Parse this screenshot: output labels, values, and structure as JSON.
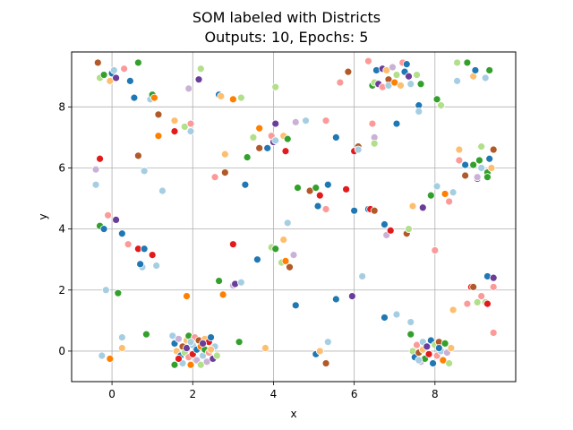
{
  "chart_data": {
    "type": "scatter",
    "title": "SOM labeled with Districts",
    "subtitle": "Outputs: 10, Epochs: 5",
    "xlabel": "x",
    "ylabel": "y",
    "xlim": [
      -1.0,
      10.0
    ],
    "ylim": [
      -1.0,
      9.8
    ],
    "xticks": [
      0,
      2,
      4,
      6,
      8
    ],
    "yticks": [
      0,
      2,
      4,
      6,
      8
    ],
    "grid": true,
    "palette": [
      "#a6cee3",
      "#1f78b4",
      "#b2df8a",
      "#33a02c",
      "#fb9a99",
      "#e31a1c",
      "#fdbf6f",
      "#ff7f00",
      "#cab2d6",
      "#6a3d9a",
      "#b15928"
    ],
    "points": [
      {
        "x": -0.35,
        "y": 9.45,
        "c": 10
      },
      {
        "x": -0.3,
        "y": 8.95,
        "c": 2
      },
      {
        "x": -0.2,
        "y": 9.05,
        "c": 3
      },
      {
        "x": -0.05,
        "y": 8.85,
        "c": 6
      },
      {
        "x": 0.0,
        "y": 9.1,
        "c": 1
      },
      {
        "x": 0.05,
        "y": 9.2,
        "c": 0
      },
      {
        "x": 0.1,
        "y": 8.95,
        "c": 9
      },
      {
        "x": 0.3,
        "y": 9.25,
        "c": 4
      },
      {
        "x": 0.45,
        "y": 8.85,
        "c": 1
      },
      {
        "x": 0.65,
        "y": 9.45,
        "c": 3
      },
      {
        "x": 0.55,
        "y": 8.3,
        "c": 1
      },
      {
        "x": 0.95,
        "y": 8.25,
        "c": 0
      },
      {
        "x": 1.0,
        "y": 8.4,
        "c": 3
      },
      {
        "x": 1.05,
        "y": 8.3,
        "c": 7
      },
      {
        "x": -0.3,
        "y": 6.3,
        "c": 5
      },
      {
        "x": -0.4,
        "y": 5.95,
        "c": 8
      },
      {
        "x": -0.4,
        "y": 5.45,
        "c": 0
      },
      {
        "x": 0.65,
        "y": 6.4,
        "c": 10
      },
      {
        "x": 0.8,
        "y": 5.9,
        "c": 0
      },
      {
        "x": 1.15,
        "y": 7.75,
        "c": 10
      },
      {
        "x": 1.15,
        "y": 7.05,
        "c": 7
      },
      {
        "x": 1.25,
        "y": 5.25,
        "c": 0
      },
      {
        "x": 1.55,
        "y": 7.55,
        "c": 6
      },
      {
        "x": 1.55,
        "y": 7.2,
        "c": 5
      },
      {
        "x": 1.8,
        "y": 7.35,
        "c": 2
      },
      {
        "x": 1.9,
        "y": 8.6,
        "c": 8
      },
      {
        "x": 1.95,
        "y": 7.45,
        "c": 4
      },
      {
        "x": 1.95,
        "y": 7.2,
        "c": 0
      },
      {
        "x": 2.15,
        "y": 8.9,
        "c": 9
      },
      {
        "x": 2.2,
        "y": 9.25,
        "c": 2
      },
      {
        "x": 2.65,
        "y": 8.4,
        "c": 1
      },
      {
        "x": 2.7,
        "y": 8.35,
        "c": 6
      },
      {
        "x": 3.0,
        "y": 8.25,
        "c": 7
      },
      {
        "x": 3.2,
        "y": 8.3,
        "c": 2
      },
      {
        "x": 2.55,
        "y": 5.7,
        "c": 4
      },
      {
        "x": 2.8,
        "y": 5.85,
        "c": 10
      },
      {
        "x": 2.8,
        "y": 6.45,
        "c": 6
      },
      {
        "x": 3.3,
        "y": 5.45,
        "c": 1
      },
      {
        "x": 3.35,
        "y": 6.35,
        "c": 3
      },
      {
        "x": 3.5,
        "y": 7.0,
        "c": 2
      },
      {
        "x": 3.65,
        "y": 6.65,
        "c": 10
      },
      {
        "x": 3.65,
        "y": 7.3,
        "c": 7
      },
      {
        "x": 3.85,
        "y": 6.65,
        "c": 1
      },
      {
        "x": 3.95,
        "y": 7.05,
        "c": 4
      },
      {
        "x": 4.0,
        "y": 6.85,
        "c": 9
      },
      {
        "x": 4.05,
        "y": 7.45,
        "c": 9
      },
      {
        "x": 4.05,
        "y": 6.9,
        "c": 0
      },
      {
        "x": 4.05,
        "y": 8.65,
        "c": 2
      },
      {
        "x": 4.25,
        "y": 7.05,
        "c": 6
      },
      {
        "x": 4.3,
        "y": 6.55,
        "c": 5
      },
      {
        "x": 4.35,
        "y": 6.95,
        "c": 3
      },
      {
        "x": 4.55,
        "y": 7.5,
        "c": 8
      },
      {
        "x": 4.8,
        "y": 7.55,
        "c": 0
      },
      {
        "x": 5.3,
        "y": 7.55,
        "c": 4
      },
      {
        "x": 5.55,
        "y": 7.0,
        "c": 1
      },
      {
        "x": 5.65,
        "y": 8.8,
        "c": 4
      },
      {
        "x": 5.85,
        "y": 9.15,
        "c": 10
      },
      {
        "x": 4.6,
        "y": 5.35,
        "c": 3
      },
      {
        "x": 4.9,
        "y": 5.25,
        "c": 10
      },
      {
        "x": 5.05,
        "y": 5.35,
        "c": 3
      },
      {
        "x": 5.15,
        "y": 5.1,
        "c": 5
      },
      {
        "x": 5.35,
        "y": 5.45,
        "c": 1
      },
      {
        "x": 5.1,
        "y": 4.75,
        "c": 1
      },
      {
        "x": 5.3,
        "y": 4.65,
        "c": 4
      },
      {
        "x": 5.8,
        "y": 5.3,
        "c": 5
      },
      {
        "x": 6.0,
        "y": 4.6,
        "c": 1
      },
      {
        "x": 6.0,
        "y": 6.55,
        "c": 5
      },
      {
        "x": 6.1,
        "y": 6.7,
        "c": 10
      },
      {
        "x": 6.1,
        "y": 6.6,
        "c": 0
      },
      {
        "x": 6.35,
        "y": 4.65,
        "c": 1
      },
      {
        "x": 6.4,
        "y": 4.65,
        "c": 5
      },
      {
        "x": 6.45,
        "y": 7.45,
        "c": 4
      },
      {
        "x": 6.5,
        "y": 7.0,
        "c": 8
      },
      {
        "x": 6.5,
        "y": 6.8,
        "c": 2
      },
      {
        "x": 6.5,
        "y": 4.6,
        "c": 10
      },
      {
        "x": 6.75,
        "y": 4.15,
        "c": 1
      },
      {
        "x": 6.8,
        "y": 3.8,
        "c": 8
      },
      {
        "x": 6.9,
        "y": 3.95,
        "c": 5
      },
      {
        "x": 7.05,
        "y": 7.45,
        "c": 1
      },
      {
        "x": 6.35,
        "y": 9.5,
        "c": 4
      },
      {
        "x": 6.45,
        "y": 8.7,
        "c": 3
      },
      {
        "x": 6.5,
        "y": 8.8,
        "c": 2
      },
      {
        "x": 6.55,
        "y": 9.2,
        "c": 1
      },
      {
        "x": 6.6,
        "y": 8.75,
        "c": 9
      },
      {
        "x": 6.7,
        "y": 9.25,
        "c": 9
      },
      {
        "x": 6.7,
        "y": 8.65,
        "c": 4
      },
      {
        "x": 6.8,
        "y": 9.2,
        "c": 6
      },
      {
        "x": 6.85,
        "y": 8.9,
        "c": 10
      },
      {
        "x": 6.85,
        "y": 8.7,
        "c": 0
      },
      {
        "x": 6.95,
        "y": 9.3,
        "c": 8
      },
      {
        "x": 7.0,
        "y": 8.8,
        "c": 7
      },
      {
        "x": 7.05,
        "y": 9.05,
        "c": 2
      },
      {
        "x": 7.15,
        "y": 8.7,
        "c": 6
      },
      {
        "x": 7.2,
        "y": 9.45,
        "c": 4
      },
      {
        "x": 7.25,
        "y": 9.15,
        "c": 1
      },
      {
        "x": 7.3,
        "y": 9.4,
        "c": 1
      },
      {
        "x": 7.35,
        "y": 9.0,
        "c": 9
      },
      {
        "x": 7.4,
        "y": 8.75,
        "c": 0
      },
      {
        "x": 7.55,
        "y": 9.05,
        "c": 2
      },
      {
        "x": 7.65,
        "y": 8.75,
        "c": 3
      },
      {
        "x": 7.6,
        "y": 8.05,
        "c": 1
      },
      {
        "x": 7.6,
        "y": 7.85,
        "c": 0
      },
      {
        "x": 8.05,
        "y": 8.25,
        "c": 3
      },
      {
        "x": 8.15,
        "y": 8.05,
        "c": 2
      },
      {
        "x": 8.55,
        "y": 9.45,
        "c": 2
      },
      {
        "x": 8.55,
        "y": 8.85,
        "c": 0
      },
      {
        "x": 8.8,
        "y": 9.45,
        "c": 3
      },
      {
        "x": 8.95,
        "y": 9.0,
        "c": 6
      },
      {
        "x": 9.0,
        "y": 9.2,
        "c": 1
      },
      {
        "x": 9.25,
        "y": 8.95,
        "c": 0
      },
      {
        "x": 9.35,
        "y": 9.2,
        "c": 3
      },
      {
        "x": 7.3,
        "y": 3.85,
        "c": 10
      },
      {
        "x": 7.35,
        "y": 4.0,
        "c": 2
      },
      {
        "x": 7.45,
        "y": 4.75,
        "c": 6
      },
      {
        "x": 7.7,
        "y": 4.7,
        "c": 9
      },
      {
        "x": 7.9,
        "y": 5.1,
        "c": 3
      },
      {
        "x": 8.05,
        "y": 5.4,
        "c": 0
      },
      {
        "x": 8.0,
        "y": 3.3,
        "c": 4
      },
      {
        "x": 8.25,
        "y": 5.15,
        "c": 7
      },
      {
        "x": 8.35,
        "y": 4.9,
        "c": 4
      },
      {
        "x": 8.45,
        "y": 5.2,
        "c": 0
      },
      {
        "x": 8.6,
        "y": 6.6,
        "c": 6
      },
      {
        "x": 8.6,
        "y": 6.25,
        "c": 4
      },
      {
        "x": 8.75,
        "y": 6.1,
        "c": 1
      },
      {
        "x": 8.75,
        "y": 5.75,
        "c": 10
      },
      {
        "x": 8.95,
        "y": 6.1,
        "c": 3
      },
      {
        "x": 9.05,
        "y": 5.65,
        "c": 9
      },
      {
        "x": 9.05,
        "y": 5.7,
        "c": 8
      },
      {
        "x": 9.1,
        "y": 6.25,
        "c": 3
      },
      {
        "x": 9.15,
        "y": 6.0,
        "c": 0
      },
      {
        "x": 9.15,
        "y": 6.7,
        "c": 2
      },
      {
        "x": 9.3,
        "y": 5.85,
        "c": 3
      },
      {
        "x": 9.3,
        "y": 5.7,
        "c": 3
      },
      {
        "x": 9.35,
        "y": 6.3,
        "c": 1
      },
      {
        "x": 9.4,
        "y": 6.0,
        "c": 6
      },
      {
        "x": 9.45,
        "y": 6.6,
        "c": 10
      },
      {
        "x": -0.3,
        "y": 4.1,
        "c": 3
      },
      {
        "x": -0.2,
        "y": 4.0,
        "c": 1
      },
      {
        "x": -0.1,
        "y": 4.45,
        "c": 4
      },
      {
        "x": 0.1,
        "y": 4.3,
        "c": 9
      },
      {
        "x": 0.25,
        "y": 3.85,
        "c": 1
      },
      {
        "x": 0.4,
        "y": 3.5,
        "c": 4
      },
      {
        "x": 0.65,
        "y": 3.35,
        "c": 5
      },
      {
        "x": 0.75,
        "y": 2.75,
        "c": 0
      },
      {
        "x": 0.8,
        "y": 3.35,
        "c": 1
      },
      {
        "x": 0.7,
        "y": 2.85,
        "c": 1
      },
      {
        "x": 1.0,
        "y": 3.15,
        "c": 5
      },
      {
        "x": 1.1,
        "y": 2.8,
        "c": 0
      },
      {
        "x": -0.15,
        "y": 2.0,
        "c": 0
      },
      {
        "x": 0.15,
        "y": 1.9,
        "c": 3
      },
      {
        "x": 0.25,
        "y": 0.45,
        "c": 0
      },
      {
        "x": 0.25,
        "y": 0.1,
        "c": 6
      },
      {
        "x": -0.05,
        "y": -0.25,
        "c": 7
      },
      {
        "x": -0.25,
        "y": -0.15,
        "c": 0
      },
      {
        "x": 0.85,
        "y": 0.55,
        "c": 3
      },
      {
        "x": 2.65,
        "y": 2.3,
        "c": 3
      },
      {
        "x": 2.75,
        "y": 1.85,
        "c": 7
      },
      {
        "x": 3.0,
        "y": 3.5,
        "c": 5
      },
      {
        "x": 3.0,
        "y": 2.15,
        "c": 8
      },
      {
        "x": 3.05,
        "y": 2.2,
        "c": 9
      },
      {
        "x": 3.2,
        "y": 2.25,
        "c": 0
      },
      {
        "x": 3.6,
        "y": 3.0,
        "c": 1
      },
      {
        "x": 3.95,
        "y": 3.4,
        "c": 2
      },
      {
        "x": 4.05,
        "y": 3.35,
        "c": 3
      },
      {
        "x": 4.2,
        "y": 2.9,
        "c": 2
      },
      {
        "x": 4.25,
        "y": 3.65,
        "c": 6
      },
      {
        "x": 4.3,
        "y": 2.95,
        "c": 7
      },
      {
        "x": 4.4,
        "y": 2.75,
        "c": 10
      },
      {
        "x": 4.35,
        "y": 4.2,
        "c": 0
      },
      {
        "x": 4.5,
        "y": 3.15,
        "c": 8
      },
      {
        "x": 4.55,
        "y": 1.5,
        "c": 1
      },
      {
        "x": 1.85,
        "y": 1.8,
        "c": 7
      },
      {
        "x": 3.15,
        "y": 0.3,
        "c": 3
      },
      {
        "x": 3.8,
        "y": 0.1,
        "c": 6
      },
      {
        "x": 5.05,
        "y": -0.1,
        "c": 1
      },
      {
        "x": 5.15,
        "y": 0.0,
        "c": 6
      },
      {
        "x": 5.3,
        "y": -0.4,
        "c": 10
      },
      {
        "x": 5.35,
        "y": 0.3,
        "c": 0
      },
      {
        "x": 5.55,
        "y": 1.7,
        "c": 1
      },
      {
        "x": 5.95,
        "y": 1.8,
        "c": 9
      },
      {
        "x": 6.2,
        "y": 2.45,
        "c": 0
      },
      {
        "x": 6.75,
        "y": 1.1,
        "c": 1
      },
      {
        "x": 7.05,
        "y": 1.2,
        "c": 0
      },
      {
        "x": 7.4,
        "y": 0.95,
        "c": 0
      },
      {
        "x": 7.4,
        "y": 0.55,
        "c": 3
      },
      {
        "x": 8.45,
        "y": 1.35,
        "c": 6
      },
      {
        "x": 8.9,
        "y": 2.1,
        "c": 5
      },
      {
        "x": 8.95,
        "y": 2.1,
        "c": 10
      },
      {
        "x": 8.8,
        "y": 1.55,
        "c": 4
      },
      {
        "x": 9.05,
        "y": 1.6,
        "c": 2
      },
      {
        "x": 9.15,
        "y": 1.8,
        "c": 4
      },
      {
        "x": 9.25,
        "y": 1.6,
        "c": 2
      },
      {
        "x": 9.3,
        "y": 1.55,
        "c": 5
      },
      {
        "x": 9.3,
        "y": 2.45,
        "c": 1
      },
      {
        "x": 9.45,
        "y": 2.4,
        "c": 9
      },
      {
        "x": 9.45,
        "y": 2.1,
        "c": 4
      },
      {
        "x": 9.45,
        "y": 0.6,
        "c": 4
      },
      {
        "x": 1.5,
        "y": 0.5,
        "c": 0
      },
      {
        "x": 1.55,
        "y": -0.45,
        "c": 3
      },
      {
        "x": 1.55,
        "y": 0.25,
        "c": 1
      },
      {
        "x": 1.6,
        "y": 0.0,
        "c": 6
      },
      {
        "x": 1.65,
        "y": 0.4,
        "c": 8
      },
      {
        "x": 1.7,
        "y": -0.15,
        "c": 1
      },
      {
        "x": 1.75,
        "y": 0.15,
        "c": 10
      },
      {
        "x": 1.75,
        "y": -0.4,
        "c": 0
      },
      {
        "x": 1.8,
        "y": -0.05,
        "c": 2
      },
      {
        "x": 1.85,
        "y": 0.35,
        "c": 6
      },
      {
        "x": 1.85,
        "y": 0.1,
        "c": 9
      },
      {
        "x": 1.9,
        "y": -0.2,
        "c": 4
      },
      {
        "x": 1.9,
        "y": 0.5,
        "c": 3
      },
      {
        "x": 1.95,
        "y": -0.45,
        "c": 7
      },
      {
        "x": 2.0,
        "y": 0.2,
        "c": 0
      },
      {
        "x": 2.0,
        "y": -0.1,
        "c": 5
      },
      {
        "x": 2.05,
        "y": 0.45,
        "c": 4
      },
      {
        "x": 2.1,
        "y": -0.3,
        "c": 8
      },
      {
        "x": 2.1,
        "y": 0.05,
        "c": 1
      },
      {
        "x": 2.15,
        "y": 0.35,
        "c": 10
      },
      {
        "x": 2.2,
        "y": -0.45,
        "c": 2
      },
      {
        "x": 2.2,
        "y": 0.15,
        "c": 7
      },
      {
        "x": 2.25,
        "y": -0.15,
        "c": 0
      },
      {
        "x": 2.3,
        "y": 0.4,
        "c": 6
      },
      {
        "x": 2.3,
        "y": 0.05,
        "c": 3
      },
      {
        "x": 2.35,
        "y": -0.35,
        "c": 8
      },
      {
        "x": 2.4,
        "y": 0.3,
        "c": 5
      },
      {
        "x": 2.4,
        "y": -0.05,
        "c": 4
      },
      {
        "x": 2.45,
        "y": 0.45,
        "c": 1
      },
      {
        "x": 2.5,
        "y": -0.25,
        "c": 9
      },
      {
        "x": 2.55,
        "y": 0.15,
        "c": 0
      },
      {
        "x": 2.6,
        "y": -0.15,
        "c": 2
      },
      {
        "x": 1.65,
        "y": -0.25,
        "c": 5
      },
      {
        "x": 1.95,
        "y": 0.3,
        "c": 0
      },
      {
        "x": 2.25,
        "y": 0.25,
        "c": 9
      },
      {
        "x": 2.45,
        "y": 0.05,
        "c": 6
      },
      {
        "x": 7.45,
        "y": 0.0,
        "c": 2
      },
      {
        "x": 7.5,
        "y": -0.2,
        "c": 1
      },
      {
        "x": 7.55,
        "y": 0.2,
        "c": 4
      },
      {
        "x": 7.6,
        "y": -0.05,
        "c": 10
      },
      {
        "x": 7.65,
        "y": -0.35,
        "c": 8
      },
      {
        "x": 7.7,
        "y": 0.3,
        "c": 0
      },
      {
        "x": 7.7,
        "y": 0.05,
        "c": 6
      },
      {
        "x": 7.75,
        "y": -0.25,
        "c": 3
      },
      {
        "x": 7.8,
        "y": 0.15,
        "c": 9
      },
      {
        "x": 7.85,
        "y": -0.1,
        "c": 5
      },
      {
        "x": 7.9,
        "y": 0.35,
        "c": 1
      },
      {
        "x": 7.95,
        "y": -0.4,
        "c": 1
      },
      {
        "x": 8.0,
        "y": 0.2,
        "c": 2
      },
      {
        "x": 8.05,
        "y": -0.15,
        "c": 4
      },
      {
        "x": 8.1,
        "y": 0.3,
        "c": 10
      },
      {
        "x": 8.15,
        "y": 0.0,
        "c": 0
      },
      {
        "x": 8.2,
        "y": -0.3,
        "c": 7
      },
      {
        "x": 8.25,
        "y": 0.25,
        "c": 3
      },
      {
        "x": 8.3,
        "y": -0.05,
        "c": 8
      },
      {
        "x": 8.35,
        "y": -0.4,
        "c": 2
      },
      {
        "x": 8.4,
        "y": 0.1,
        "c": 6
      },
      {
        "x": 7.6,
        "y": -0.3,
        "c": 0
      },
      {
        "x": 8.1,
        "y": 0.1,
        "c": 1
      }
    ]
  }
}
